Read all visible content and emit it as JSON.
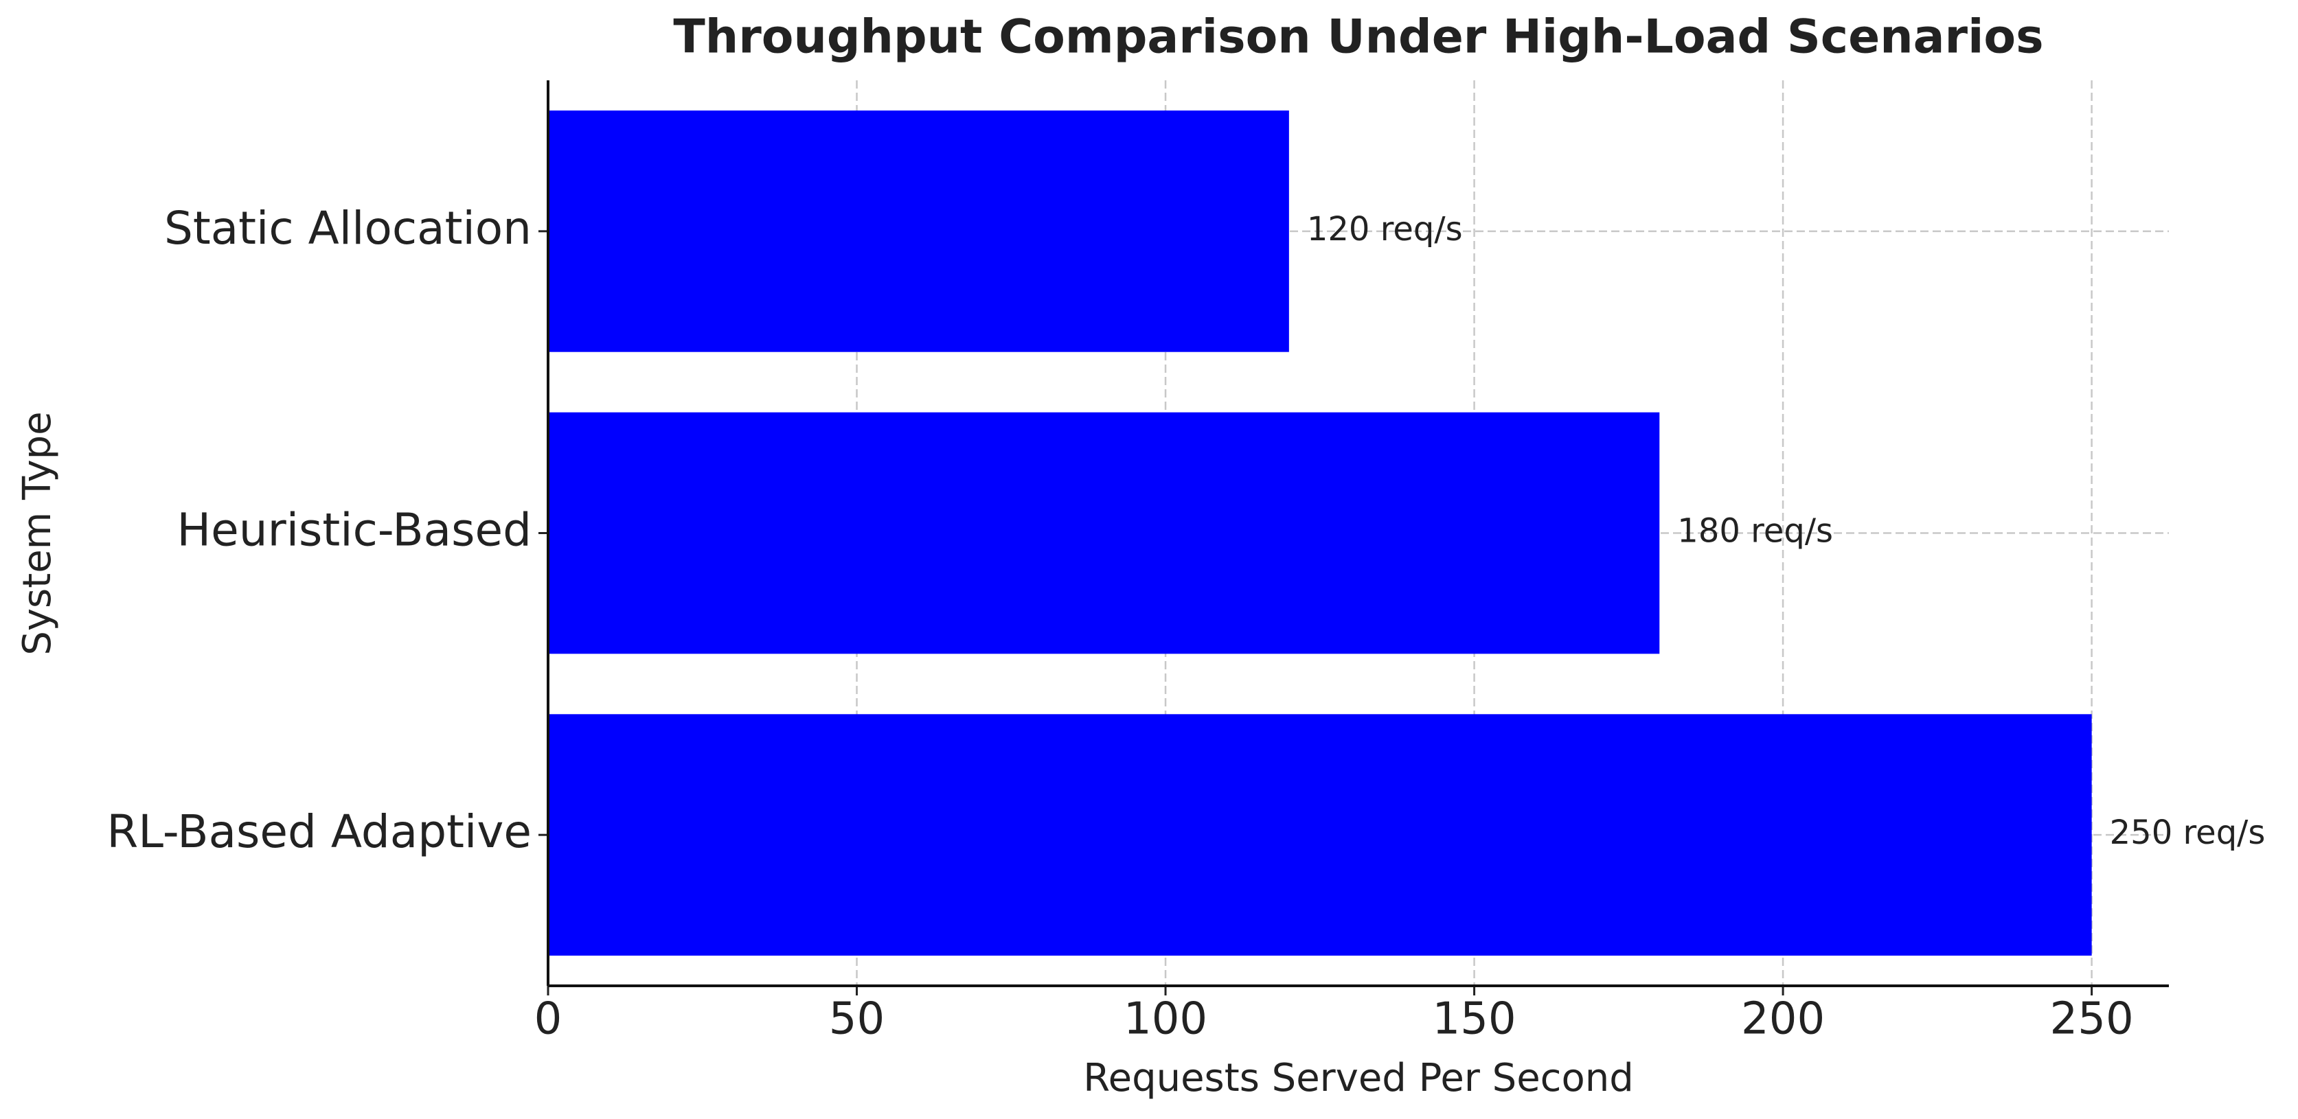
{
  "chart_data": {
    "type": "barh",
    "title": "Throughput Comparison Under High-Load Scenarios",
    "xlabel": "Requests Served Per Second",
    "ylabel": "System Type",
    "categories": [
      "Static Allocation",
      "Heuristic-Based",
      "RL-Based Adaptive"
    ],
    "values": [
      120,
      180,
      250
    ],
    "value_labels": [
      "120 req/s",
      "180 req/s",
      "250 req/s"
    ],
    "color": "#0000ff",
    "xlim": [
      0,
      262.5
    ],
    "xticks": [
      0,
      50,
      100,
      150,
      200,
      250
    ],
    "grid": true
  }
}
